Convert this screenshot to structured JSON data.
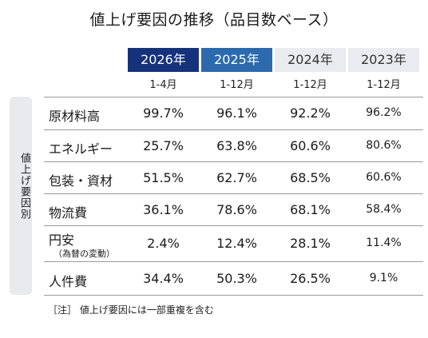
{
  "title": "値上げ要因の推移（品目数ベース）",
  "header": {
    "years": [
      "2026年",
      "2025年",
      "2024年",
      "2023年"
    ],
    "periods": [
      "1-4月",
      "1-12月",
      "1-12月",
      "1-12月"
    ],
    "colors": {
      "year2026": "#15327a",
      "year2025": "#2c6aad",
      "past": "#e9ebee"
    }
  },
  "side_label": "値上げ要因別",
  "rows": [
    {
      "label": "原材料高",
      "sub": "",
      "values": [
        "99.7%",
        "96.1%",
        "92.2%",
        "96.2%"
      ]
    },
    {
      "label": "エネルギー",
      "sub": "",
      "values": [
        "25.7%",
        "63.8%",
        "60.6%",
        "80.6%"
      ]
    },
    {
      "label": "包装・資材",
      "sub": "",
      "values": [
        "51.5%",
        "62.7%",
        "68.5%",
        "60.6%"
      ]
    },
    {
      "label": "物流費",
      "sub": "",
      "values": [
        "36.1%",
        "78.6%",
        "68.1%",
        "58.4%"
      ]
    },
    {
      "label": "円安",
      "sub": "（為替の変動）",
      "values": [
        "2.4%",
        "12.4%",
        "28.1%",
        "11.4%"
      ]
    },
    {
      "label": "人件費",
      "sub": "",
      "values": [
        "34.4%",
        "50.3%",
        "26.5%",
        "9.1%"
      ]
    }
  ],
  "note": "［注］ 値上げ要因には一部重複を含む"
}
